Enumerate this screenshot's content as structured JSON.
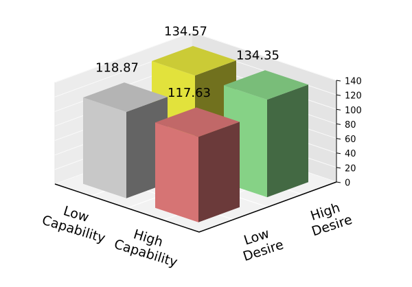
{
  "chart_data": {
    "type": "bar3d",
    "x_categories": [
      "Low Capability",
      "High Capability"
    ],
    "y_categories": [
      "Low Desire",
      "High Desire"
    ],
    "values": [
      [
        118.87,
        134.57
      ],
      [
        117.63,
        134.35
      ]
    ],
    "colors": [
      [
        "#c8c8c8",
        "#e2e23c"
      ],
      [
        "#d67474",
        "#86d286"
      ]
    ],
    "zlim": [
      0,
      140
    ],
    "zticks": [
      0,
      20,
      40,
      60,
      80,
      100,
      120,
      140
    ],
    "grid": true
  }
}
